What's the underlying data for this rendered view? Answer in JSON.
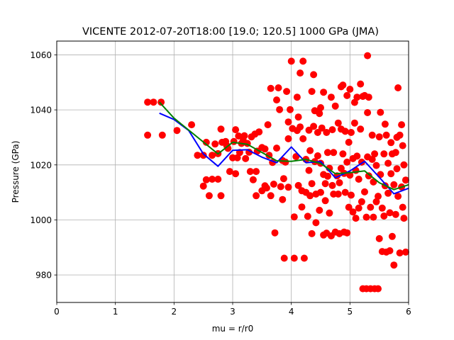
{
  "chart_data": {
    "type": "scatter",
    "title": "VICENTE 2012-07-20T18:00 [19.0; 120.5] 1000 GPa (JMA)",
    "xlabel": "mu = r/r0",
    "ylabel": "Pressure (GPa)",
    "xlim": [
      0,
      6
    ],
    "ylim": [
      970,
      1065
    ],
    "xticks": [
      0,
      1,
      2,
      3,
      4,
      5,
      6
    ],
    "yticks": [
      980,
      1000,
      1020,
      1040,
      1060
    ],
    "grid": true,
    "legend": "none",
    "colors": {
      "points": "#ff0000",
      "blue_line": "#0000ff",
      "green_line": "#008000"
    },
    "series": [
      {
        "type": "scatter",
        "points": [
          [
            1.55,
            1042.8
          ],
          [
            1.65,
            1042.8
          ],
          [
            1.78,
            1042.8
          ],
          [
            1.55,
            1030.8
          ],
          [
            1.8,
            1030.8
          ],
          [
            2.05,
            1032.5
          ],
          [
            2.3,
            1034.6
          ],
          [
            2.4,
            1023.5
          ],
          [
            2.5,
            1023.5
          ],
          [
            2.5,
            1012.3
          ],
          [
            2.55,
            1014.6
          ],
          [
            2.55,
            1028.2
          ],
          [
            2.6,
            1008.8
          ],
          [
            2.65,
            1023.5
          ],
          [
            2.65,
            1014.8
          ],
          [
            2.7,
            1027.6
          ],
          [
            2.75,
            1024.1
          ],
          [
            2.75,
            1014.8
          ],
          [
            2.8,
            1033.0
          ],
          [
            2.8,
            1008.8
          ],
          [
            2.82,
            1028.2
          ],
          [
            2.88,
            1028.5
          ],
          [
            2.9,
            1027.0
          ],
          [
            2.92,
            1026.0
          ],
          [
            2.95,
            1017.6
          ],
          [
            3.0,
            1022.6
          ],
          [
            3.02,
            1028.5
          ],
          [
            3.05,
            1032.8
          ],
          [
            3.05,
            1016.8
          ],
          [
            3.08,
            1022.6
          ],
          [
            3.1,
            1030.5
          ],
          [
            3.12,
            1024.5
          ],
          [
            3.15,
            1027.8
          ],
          [
            3.18,
            1028.9
          ],
          [
            3.2,
            1030.6
          ],
          [
            3.22,
            1022.3
          ],
          [
            3.25,
            1027.8
          ],
          [
            3.28,
            1024.6
          ],
          [
            3.3,
            1017.6
          ],
          [
            3.32,
            1030.2
          ],
          [
            3.35,
            1014.6
          ],
          [
            3.38,
            1031.2
          ],
          [
            3.4,
            1017.6
          ],
          [
            3.4,
            1008.8
          ],
          [
            3.42,
            1025.0
          ],
          [
            3.45,
            1032.0
          ],
          [
            3.5,
            1026.3
          ],
          [
            3.5,
            1010.6
          ],
          [
            3.55,
            1012.4
          ],
          [
            3.55,
            1025.8
          ],
          [
            3.58,
            1011.6
          ],
          [
            3.6,
            1034.6
          ],
          [
            3.62,
            1023.5
          ],
          [
            3.65,
            1008.8
          ],
          [
            3.65,
            1047.8
          ],
          [
            3.68,
            1020.9
          ],
          [
            3.7,
            1013.0
          ],
          [
            3.72,
            995.3
          ],
          [
            3.75,
            1043.6
          ],
          [
            3.75,
            1026.1
          ],
          [
            3.78,
            1048.0
          ],
          [
            3.8,
            1040.1
          ],
          [
            3.82,
            1012.1
          ],
          [
            3.85,
            1021.6
          ],
          [
            3.85,
            1007.4
          ],
          [
            3.87,
            1015.0
          ],
          [
            3.88,
            986.1
          ],
          [
            3.9,
            1021.0
          ],
          [
            3.92,
            1046.7
          ],
          [
            3.95,
            1035.6
          ],
          [
            3.95,
            1011.9
          ],
          [
            3.95,
            1029.5
          ],
          [
            3.98,
            1040.1
          ],
          [
            4.0,
            1057.7
          ],
          [
            4.02,
            1033.2
          ],
          [
            4.05,
            1001.1
          ],
          [
            4.05,
            986.1
          ],
          [
            4.08,
            1023.0
          ],
          [
            4.1,
            1044.6
          ],
          [
            4.1,
            1032.5
          ],
          [
            4.12,
            1037.4
          ],
          [
            4.12,
            1012.5
          ],
          [
            4.15,
            1033.8
          ],
          [
            4.15,
            1053.4
          ],
          [
            4.18,
            1004.7
          ],
          [
            4.18,
            1010.6
          ],
          [
            4.2,
            1057.7
          ],
          [
            4.2,
            1029.5
          ],
          [
            4.22,
            986.1
          ],
          [
            4.25,
            1022.0
          ],
          [
            4.25,
            1010.0
          ],
          [
            4.28,
            1001.3
          ],
          [
            4.3,
            1032.6
          ],
          [
            4.3,
            1018.0
          ],
          [
            4.32,
            1025.2
          ],
          [
            4.32,
            1008.8
          ],
          [
            4.35,
            995.0
          ],
          [
            4.35,
            1046.7
          ],
          [
            4.35,
            1013.2
          ],
          [
            4.38,
            1034.0
          ],
          [
            4.38,
            1052.8
          ],
          [
            4.4,
            1039.7
          ],
          [
            4.4,
            1021.2
          ],
          [
            4.42,
            1009.4
          ],
          [
            4.42,
            999.0
          ],
          [
            4.45,
            1023.3
          ],
          [
            4.45,
            1031.8
          ],
          [
            4.48,
            1038.7
          ],
          [
            4.48,
            1003.5
          ],
          [
            4.5,
            1010.0
          ],
          [
            4.5,
            1040.8
          ],
          [
            4.5,
            1020.6
          ],
          [
            4.52,
            1033.4
          ],
          [
            4.55,
            1046.4
          ],
          [
            4.55,
            1016.5
          ],
          [
            4.55,
            994.5
          ],
          [
            4.58,
            1007.0
          ],
          [
            4.58,
            1013.2
          ],
          [
            4.6,
            1031.8
          ],
          [
            4.6,
            995.2
          ],
          [
            4.62,
            1024.5
          ],
          [
            4.62,
            1015.9
          ],
          [
            4.65,
            1002.5
          ],
          [
            4.65,
            1018.8
          ],
          [
            4.68,
            1044.6
          ],
          [
            4.68,
            994.2
          ],
          [
            4.7,
            1032.8
          ],
          [
            4.7,
            1012.5
          ],
          [
            4.72,
            1024.5
          ],
          [
            4.72,
            1009.4
          ],
          [
            4.75,
            1041.4
          ],
          [
            4.75,
            995.6
          ],
          [
            4.78,
            1016.0
          ],
          [
            4.8,
            1035.2
          ],
          [
            4.8,
            1009.4
          ],
          [
            4.82,
            1013.5
          ],
          [
            4.82,
            995.0
          ],
          [
            4.85,
            1033.0
          ],
          [
            4.85,
            1048.4
          ],
          [
            4.85,
            1018.7
          ],
          [
            4.88,
            1049.0
          ],
          [
            4.88,
            1024.0
          ],
          [
            4.9,
            995.6
          ],
          [
            4.9,
            1016.9
          ],
          [
            4.92,
            1010.0
          ],
          [
            4.92,
            1032.2
          ],
          [
            4.95,
            1045.2
          ],
          [
            4.95,
            995.3
          ],
          [
            4.95,
            1021.0
          ],
          [
            4.98,
            1028.2
          ],
          [
            4.98,
            1004.6
          ],
          [
            5.0,
            1047.5
          ],
          [
            5.0,
            1016.3
          ],
          [
            5.02,
            1031.8
          ],
          [
            5.02,
            1009.0
          ],
          [
            5.05,
            1022.3
          ],
          [
            5.05,
            1002.9
          ],
          [
            5.08,
            1035.2
          ],
          [
            5.08,
            1042.7
          ],
          [
            5.1,
            1000.6
          ],
          [
            5.1,
            1018.0
          ],
          [
            5.12,
            1044.6
          ],
          [
            5.12,
            1023.2
          ],
          [
            5.15,
            1004.3
          ],
          [
            5.15,
            1014.8
          ],
          [
            5.18,
            1049.4
          ],
          [
            5.18,
            1033.0
          ],
          [
            5.2,
            1021.0
          ],
          [
            5.2,
            1006.6
          ],
          [
            5.22,
            975.0
          ],
          [
            5.22,
            1044.9
          ],
          [
            5.25,
            1010.2
          ],
          [
            5.25,
            1045.2
          ],
          [
            5.28,
            975.0
          ],
          [
            5.28,
            1001.0
          ],
          [
            5.3,
            1022.9
          ],
          [
            5.3,
            1039.0
          ],
          [
            5.3,
            1059.7
          ],
          [
            5.32,
            1044.6
          ],
          [
            5.32,
            1016.0
          ],
          [
            5.35,
            1004.6
          ],
          [
            5.35,
            975.0
          ],
          [
            5.38,
            1022.0
          ],
          [
            5.38,
            1030.8
          ],
          [
            5.4,
            1001.0
          ],
          [
            5.4,
            1013.8
          ],
          [
            5.42,
            1024.0
          ],
          [
            5.42,
            975.0
          ],
          [
            5.45,
            1006.6
          ],
          [
            5.45,
            1019.8
          ],
          [
            5.48,
            975.0
          ],
          [
            5.48,
            1008.6
          ],
          [
            5.5,
            1030.2
          ],
          [
            5.5,
            993.2
          ],
          [
            5.52,
            1039.1
          ],
          [
            5.52,
            1016.5
          ],
          [
            5.55,
            988.5
          ],
          [
            5.55,
            1004.3
          ],
          [
            5.58,
            1024.0
          ],
          [
            5.58,
            1001.4
          ],
          [
            5.6,
            1034.8
          ],
          [
            5.6,
            1012.4
          ],
          [
            5.62,
            988.3
          ],
          [
            5.62,
            1030.8
          ],
          [
            5.65,
            1009.7
          ],
          [
            5.65,
            1020.6
          ],
          [
            5.68,
            1002.6
          ],
          [
            5.68,
            988.8
          ],
          [
            5.7,
            1028.1
          ],
          [
            5.7,
            1016.8
          ],
          [
            5.72,
            1024.0
          ],
          [
            5.72,
            994.0
          ],
          [
            5.75,
            983.6
          ],
          [
            5.75,
            1012.8
          ],
          [
            5.78,
            1002.0
          ],
          [
            5.78,
            1024.5
          ],
          [
            5.8,
            1030.0
          ],
          [
            5.8,
            1018.6
          ],
          [
            5.82,
            1048.0
          ],
          [
            5.82,
            1008.6
          ],
          [
            5.85,
            988.0
          ],
          [
            5.85,
            1030.8
          ],
          [
            5.88,
            1012.0
          ],
          [
            5.88,
            1034.6
          ],
          [
            5.9,
            1004.6
          ],
          [
            5.9,
            1027.0
          ],
          [
            5.92,
            1020.0
          ],
          [
            5.92,
            1000.6
          ],
          [
            5.95,
            1014.5
          ],
          [
            5.95,
            988.3
          ]
        ]
      },
      {
        "type": "line",
        "color": "blue",
        "points": [
          [
            1.75,
            1038.8
          ],
          [
            2.0,
            1036.5
          ],
          [
            2.25,
            1032.5
          ],
          [
            2.5,
            1024.0
          ],
          [
            2.75,
            1019.5
          ],
          [
            3.0,
            1025.3
          ],
          [
            3.25,
            1025.5
          ],
          [
            3.5,
            1022.8
          ],
          [
            3.75,
            1020.8
          ],
          [
            4.0,
            1026.5
          ],
          [
            4.25,
            1020.8
          ],
          [
            4.5,
            1021.2
          ],
          [
            4.75,
            1015.3
          ],
          [
            5.0,
            1017.8
          ],
          [
            5.25,
            1021.3
          ],
          [
            5.5,
            1015.5
          ],
          [
            5.75,
            1009.5
          ],
          [
            6.0,
            1011.5
          ]
        ]
      },
      {
        "type": "line",
        "color": "green",
        "points": [
          [
            1.75,
            1042.8
          ],
          [
            2.0,
            1037.0
          ],
          [
            2.75,
            1024.0
          ],
          [
            3.0,
            1028.2
          ],
          [
            3.25,
            1027.5
          ],
          [
            3.5,
            1024.5
          ],
          [
            3.75,
            1021.5
          ],
          [
            4.0,
            1021.3
          ],
          [
            4.25,
            1022.0
          ],
          [
            4.5,
            1020.5
          ],
          [
            4.75,
            1016.8
          ],
          [
            5.0,
            1017.2
          ],
          [
            5.25,
            1017.8
          ],
          [
            5.5,
            1013.5
          ],
          [
            5.75,
            1011.0
          ],
          [
            6.0,
            1012.8
          ]
        ]
      }
    ]
  }
}
